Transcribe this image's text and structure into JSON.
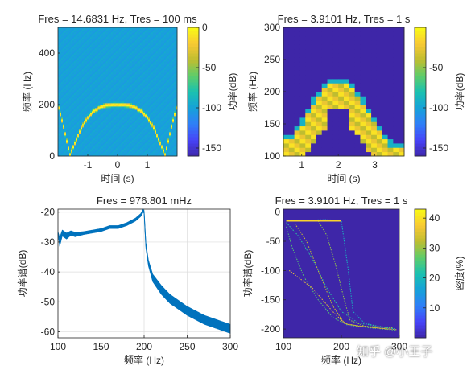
{
  "colors": {
    "parula": [
      "#3e26a8",
      "#4743f8",
      "#2f7ff8",
      "#16a1d9",
      "#1ac1b0",
      "#5ecc6a",
      "#bfbd30",
      "#f9c933",
      "#f9fb15"
    ],
    "line": "#0072bd",
    "bg_dark": "#3e26a8"
  },
  "watermark": "知乎 @小王子",
  "chart_data": [
    {
      "type": "heatmap",
      "title": "Fres = 14.6831 Hz, Tres = 100 ms",
      "xlabel": "时间 (s)",
      "ylabel": "频率 (Hz)",
      "xlim": [
        -2,
        2
      ],
      "ylim": [
        0,
        500
      ],
      "xticks": [
        -1,
        0,
        1
      ],
      "yticks": [
        0,
        200,
        400
      ],
      "tick_labels": {
        "x": [
          "-1",
          "0",
          "1"
        ],
        "y": [
          "0",
          "200",
          "400"
        ]
      },
      "colorbar": {
        "label": "功率(dB)",
        "limits": [
          -160,
          0
        ],
        "ticks": [
          0,
          -50,
          -100,
          -150
        ],
        "tick_labels": [
          "0",
          "-50",
          "-100",
          "-150"
        ]
      },
      "ridge": {
        "t": [
          -2,
          -1.8,
          -1.6,
          -1.4,
          -1.2,
          -1,
          -0.8,
          -0.6,
          -0.4,
          -0.2,
          0,
          0.2,
          0.4,
          0.6,
          0.8,
          1,
          1.2,
          1.4,
          1.6,
          1.8,
          2
        ],
        "f": [
          200,
          110,
          5,
          60,
          115,
          150,
          175,
          190,
          198,
          200,
          200,
          200,
          198,
          190,
          175,
          150,
          115,
          60,
          5,
          110,
          200
        ]
      },
      "background_db": -100,
      "ridge_db": 0
    },
    {
      "type": "heatmap",
      "title": "Fres = 3.9101 Hz, Tres = 1 s",
      "xlabel": "时间 (s)",
      "ylabel": "频率 (Hz)",
      "xlim": [
        0.5,
        3.8
      ],
      "ylim": [
        100,
        300
      ],
      "xticks": [
        1,
        2,
        3
      ],
      "yticks": [
        100,
        150,
        200,
        250,
        300
      ],
      "tick_labels": {
        "x": [
          "1",
          "2",
          "3"
        ],
        "y": [
          "100",
          "150",
          "200",
          "250",
          "300"
        ]
      },
      "colorbar": {
        "label": "功率(dB)",
        "limits": [
          -160,
          0
        ],
        "ticks": [
          -50,
          -100,
          -150
        ],
        "tick_labels": [
          "-50",
          "-100",
          "-150"
        ]
      },
      "ridge": {
        "t": [
          0.5,
          0.75,
          1.0,
          1.25,
          1.5,
          1.75,
          2.0,
          2.25,
          2.5,
          2.75,
          3.0,
          3.25,
          3.5,
          3.8
        ],
        "f": [
          110,
          115,
          135,
          165,
          185,
          198,
          200,
          198,
          185,
          165,
          135,
          115,
          100,
          100
        ]
      },
      "background_db": -160,
      "ridge_db": -10
    },
    {
      "type": "line",
      "title": "Fres = 976.801 mHz",
      "xlabel": "频率 (Hz)",
      "ylabel": "功率谱(dB)",
      "xlim": [
        100,
        300
      ],
      "ylim": [
        -62,
        -19
      ],
      "xticks": [
        100,
        150,
        200,
        250,
        300
      ],
      "yticks": [
        -20,
        -30,
        -40,
        -50,
        -60
      ],
      "tick_labels": {
        "x": [
          "100",
          "150",
          "200",
          "250",
          "300"
        ],
        "y": [
          "-20",
          "-30",
          "-40",
          "-50",
          "-60"
        ]
      },
      "grid": true,
      "series": [
        {
          "x": [
            100,
            102,
            105,
            110,
            115,
            120,
            130,
            140,
            150,
            160,
            170,
            180,
            190,
            196,
            199,
            200,
            202,
            205,
            210,
            220,
            230,
            240,
            250,
            260,
            270,
            280,
            290,
            300
          ],
          "y": [
            -27,
            -30,
            -27,
            -28,
            -27,
            -27.5,
            -27,
            -26.5,
            -26,
            -25,
            -25,
            -24,
            -22.5,
            -21,
            -19.5,
            -20,
            -31,
            -37,
            -42,
            -46,
            -49,
            -51,
            -53,
            -54.5,
            -56,
            -57,
            -58,
            -59
          ],
          "band": [
            1,
            3,
            2,
            2,
            1.5,
            1.5,
            1,
            1,
            1,
            1,
            1,
            1,
            1,
            1,
            1,
            1,
            2,
            2,
            2.5,
            3,
            3,
            3,
            3,
            3,
            3,
            3,
            3,
            3
          ]
        }
      ]
    },
    {
      "type": "heatmap",
      "title": "Fres = 3.9101 Hz, Tres = 1 s",
      "xlabel": "频率 (Hz)",
      "ylabel": "功率谱(dB)",
      "xlim": [
        100,
        300
      ],
      "ylim": [
        -215,
        5
      ],
      "xticks": [
        100,
        200,
        300
      ],
      "yticks": [
        0,
        -50,
        -100,
        -150,
        -200
      ],
      "tick_labels": {
        "x": [
          "100",
          "200",
          "300"
        ],
        "y": [
          "0",
          "-50",
          "-100",
          "-150",
          "-200"
        ]
      },
      "colorbar": {
        "label": "密度(%)",
        "limits": [
          0,
          43
        ],
        "ticks": [
          40,
          30,
          20,
          10
        ],
        "tick_labels": [
          "40",
          "30",
          "20",
          "10"
        ]
      },
      "traces": [
        {
          "x": [
            105,
            140,
            175,
            200,
            212,
            220,
            240,
            270,
            295
          ],
          "y": [
            -15,
            -14,
            -13,
            -15,
            -100,
            -170,
            -190,
            -197,
            -200
          ]
        },
        {
          "x": [
            105,
            125,
            150,
            175,
            200,
            230,
            270,
            295
          ],
          "y": [
            -18,
            -40,
            -80,
            -130,
            -170,
            -190,
            -196,
            -200
          ]
        },
        {
          "x": [
            105,
            115,
            135,
            160,
            185,
            210,
            250,
            295
          ],
          "y": [
            -25,
            -60,
            -110,
            -150,
            -180,
            -193,
            -198,
            -202
          ]
        },
        {
          "x": [
            160,
            175,
            190,
            205,
            215,
            240,
            290
          ],
          "y": [
            -15,
            -40,
            -90,
            -150,
            -185,
            -195,
            -198
          ]
        },
        {
          "x": [
            120,
            140,
            160,
            185,
            205,
            230,
            280
          ],
          "y": [
            -20,
            -50,
            -100,
            -160,
            -190,
            -195,
            -200
          ]
        },
        {
          "x": [
            110,
            150,
            185,
            200,
            210,
            250,
            295
          ],
          "y": [
            -100,
            -130,
            -170,
            -185,
            -192,
            -197,
            -201
          ]
        }
      ],
      "background_pct": 0
    }
  ]
}
